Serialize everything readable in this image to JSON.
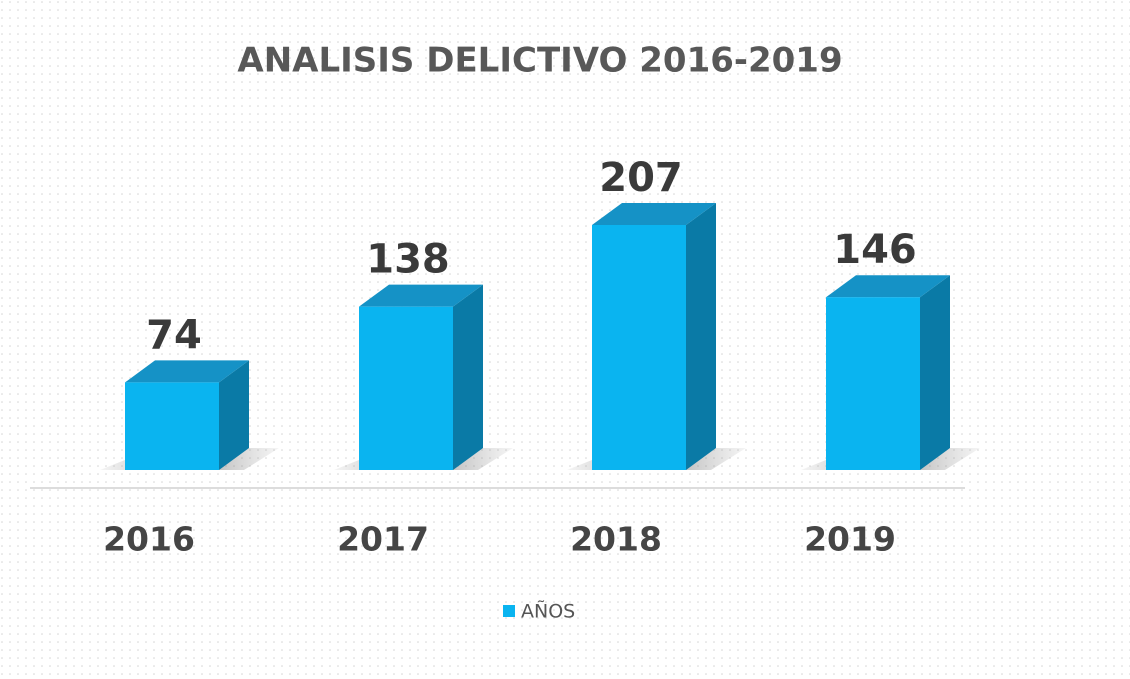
{
  "chart_data": {
    "type": "bar3d",
    "title": "ANALISIS DELICTIVO 2016-2019",
    "categories": [
      "2016",
      "2017",
      "2018",
      "2019"
    ],
    "series": [
      {
        "name": "AÑOS",
        "color": "#0ab4f0",
        "values": [
          74,
          138,
          207,
          146
        ]
      }
    ],
    "legend": "bottom"
  }
}
